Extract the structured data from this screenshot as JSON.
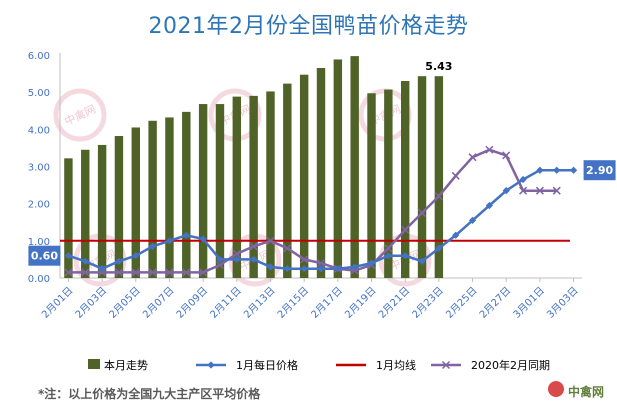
{
  "page_title": "2021年2月份全国鸭苗价格走势",
  "footnote": "*注：以上价格为全国九大主产区平均价格",
  "source": "中禽网",
  "watermark_text": "中禽网",
  "colors": {
    "bars": "#4f6228",
    "jan_daily": "#4472c4",
    "jan_avg": "#c00000",
    "y2020": "#8064a2",
    "axis_text": "#4472c4",
    "callout_bg": "#4472c4"
  },
  "chart_data": {
    "type": "bar",
    "title": "2021年2月份全国鸭苗价格走势",
    "xlabel": "",
    "ylabel": "",
    "ylim": [
      0,
      6
    ],
    "yticks": [
      "0.00",
      "1.00",
      "2.00",
      "3.00",
      "4.00",
      "5.00",
      "6.00"
    ],
    "grid": false,
    "legend_position": "bottom",
    "categories": [
      "2月01日",
      "2月02日",
      "2月03日",
      "2月04日",
      "2月05日",
      "2月06日",
      "2月07日",
      "2月08日",
      "2月09日",
      "2月10日",
      "2月11日",
      "2月12日",
      "2月13日",
      "2月14日",
      "2月15日",
      "2月16日",
      "2月17日",
      "2月18日",
      "2月19日",
      "2月20日",
      "2月21日",
      "2月22日",
      "2月23日",
      "2月24日",
      "2月25日",
      "2月26日",
      "2月27日",
      "2月28日",
      "3月01日",
      "3月02日",
      "3月03日"
    ],
    "xtick_labels": [
      "2月01日",
      "2月03日",
      "2月05日",
      "2月07日",
      "2月09日",
      "2月11日",
      "2月13日",
      "2月15日",
      "2月17日",
      "2月19日",
      "2月21日",
      "2月23日",
      "2月25日",
      "2月27日",
      "3月01日",
      "3月03日"
    ],
    "series": [
      {
        "name": "本月走势",
        "kind": "bar",
        "values": [
          3.22,
          3.45,
          3.58,
          3.82,
          4.05,
          4.23,
          4.32,
          4.47,
          4.68,
          4.68,
          4.88,
          4.9,
          5.02,
          5.23,
          5.47,
          5.65,
          5.88,
          5.97,
          4.97,
          5.07,
          5.3,
          5.43,
          5.43,
          null,
          null,
          null,
          null,
          null,
          null,
          null,
          null
        ]
      },
      {
        "name": "1月每日价格",
        "kind": "line",
        "marker": "diamond",
        "values": [
          0.6,
          0.45,
          0.25,
          0.45,
          0.6,
          0.85,
          1.0,
          1.15,
          1.05,
          0.5,
          0.5,
          0.5,
          0.3,
          0.25,
          0.25,
          0.25,
          0.25,
          0.3,
          0.4,
          0.6,
          0.6,
          0.45,
          0.8,
          1.15,
          1.55,
          1.95,
          2.35,
          2.65,
          2.9,
          2.9,
          2.9
        ]
      },
      {
        "name": "1月均线",
        "kind": "line",
        "values": [
          1.0,
          1.0,
          1.0,
          1.0,
          1.0,
          1.0,
          1.0,
          1.0,
          1.0,
          1.0,
          1.0,
          1.0,
          1.0,
          1.0,
          1.0,
          1.0,
          1.0,
          1.0,
          1.0,
          1.0,
          1.0,
          1.0,
          1.0,
          1.0,
          1.0,
          1.0,
          1.0,
          1.0,
          1.0,
          1.0,
          1.0
        ]
      },
      {
        "name": "2020年2月同期",
        "kind": "line",
        "marker": "x",
        "values": [
          0.15,
          0.15,
          0.15,
          0.15,
          0.15,
          0.15,
          0.15,
          0.15,
          0.15,
          0.35,
          0.65,
          0.85,
          1.0,
          0.8,
          0.5,
          0.4,
          0.25,
          0.2,
          0.35,
          0.8,
          1.3,
          1.75,
          2.2,
          2.75,
          3.25,
          3.45,
          3.3,
          2.35,
          2.35,
          2.35,
          null
        ]
      }
    ],
    "annotations": [
      {
        "text": "5.43",
        "series": "本月走势",
        "index": 22,
        "style": "label"
      },
      {
        "text": "0.60",
        "series": "1月每日价格",
        "index": 0,
        "style": "callout-left"
      },
      {
        "text": "2.90",
        "series": "1月每日价格",
        "index": 30,
        "style": "callout-right"
      }
    ]
  }
}
